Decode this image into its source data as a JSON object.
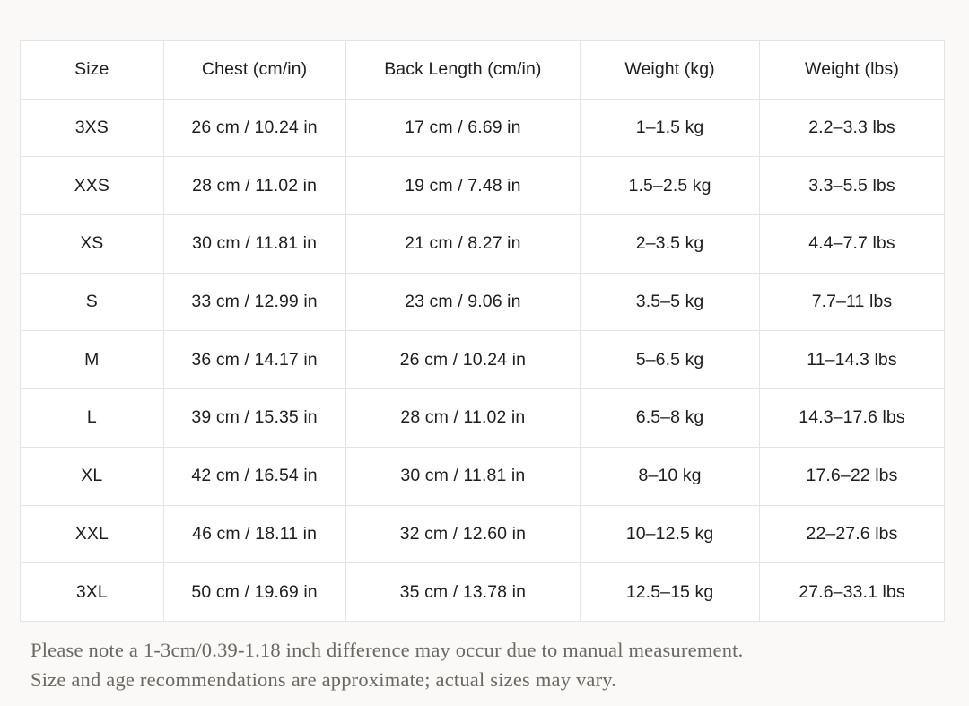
{
  "size_chart": {
    "columns": [
      "Size",
      "Chest (cm/in)",
      "Back Length (cm/in)",
      "Weight (kg)",
      "Weight (lbs)"
    ],
    "rows": [
      [
        "3XS",
        "26 cm / 10.24 in",
        "17 cm / 6.69 in",
        "1–1.5 kg",
        "2.2–3.3 lbs"
      ],
      [
        "XXS",
        "28 cm / 11.02 in",
        "19 cm / 7.48 in",
        "1.5–2.5 kg",
        "3.3–5.5 lbs"
      ],
      [
        "XS",
        "30 cm / 11.81 in",
        "21 cm / 8.27 in",
        "2–3.5 kg",
        "4.4–7.7 lbs"
      ],
      [
        "S",
        "33 cm / 12.99 in",
        "23 cm / 9.06 in",
        "3.5–5 kg",
        "7.7–11 lbs"
      ],
      [
        "M",
        "36 cm / 14.17 in",
        "26 cm / 10.24 in",
        "5–6.5 kg",
        "11–14.3 lbs"
      ],
      [
        "L",
        "39 cm / 15.35 in",
        "28 cm / 11.02 in",
        "6.5–8 kg",
        "14.3–17.6 lbs"
      ],
      [
        "XL",
        "42 cm / 16.54 in",
        "30 cm / 11.81 in",
        "8–10 kg",
        "17.6–22 lbs"
      ],
      [
        "XXL",
        "46 cm / 18.11 in",
        "32 cm / 12.60 in",
        "10–12.5 kg",
        "22–27.6 lbs"
      ],
      [
        "3XL",
        "50 cm / 19.69 in",
        "35 cm / 13.78 in",
        "12.5–15 kg",
        "27.6–33.1 lbs"
      ]
    ]
  },
  "notes": {
    "line1": "Please note a 1-3cm/0.39-1.18 inch difference may occur due to manual measurement.",
    "line2": "Size and age recommendations are approximate; actual sizes may vary."
  },
  "colors": {
    "page_background": "#faf9f7",
    "cell_background": "#ffffff",
    "border": "#e4e4e4",
    "table_text": "#1e1e1e",
    "note_text": "#6b6762"
  }
}
